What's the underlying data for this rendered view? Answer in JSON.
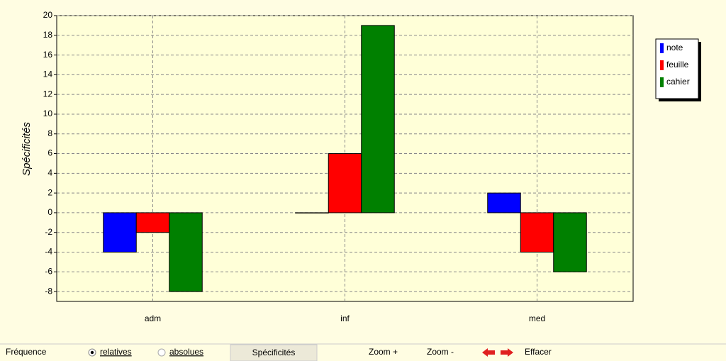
{
  "chart_data": {
    "type": "bar",
    "categories": [
      "adm",
      "inf",
      "med"
    ],
    "series": [
      {
        "name": "note",
        "color": "#0000ff",
        "values": [
          -4,
          0,
          2
        ]
      },
      {
        "name": "feuille",
        "color": "#ff0000",
        "values": [
          -2,
          6,
          -4
        ]
      },
      {
        "name": "cahier",
        "color": "#008000",
        "values": [
          -8,
          19,
          -6
        ]
      }
    ],
    "ylabel": "Spécificités",
    "ylim": [
      -9,
      20
    ],
    "yticks": [
      -8,
      -6,
      -4,
      -2,
      0,
      2,
      4,
      6,
      8,
      10,
      12,
      14,
      16,
      18,
      20
    ],
    "grid": true,
    "legend": "right"
  },
  "toolbar": {
    "frequence": "Fréquence",
    "options": [
      "relatives",
      "absolues"
    ],
    "button": "Spécificités",
    "zoom_in": "Zoom +",
    "zoom_out": "Zoom -",
    "clear": "Effacer"
  }
}
